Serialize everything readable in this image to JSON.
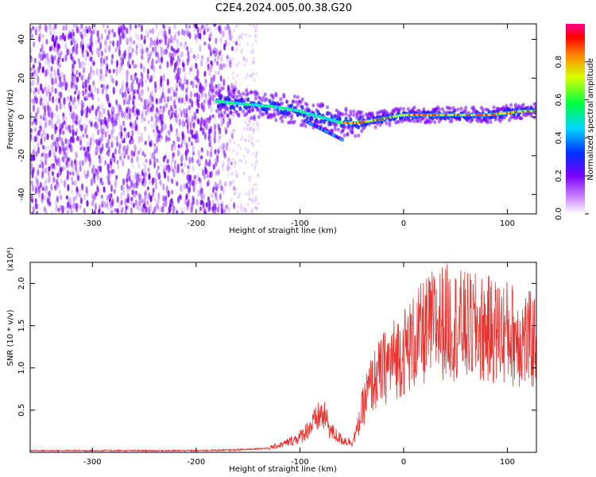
{
  "title": "C2E4.2024.005.00.38.G20",
  "chart_data": [
    {
      "type": "heatmap",
      "xlabel": "Height of straight line (km)",
      "ylabel": "Frequency (Hz)",
      "xlim": [
        -360,
        128
      ],
      "ylim": [
        -50,
        48
      ],
      "xticks": [
        -300,
        -200,
        -100,
        0,
        100
      ],
      "yticks": [
        -40,
        -20,
        0,
        20,
        40
      ],
      "colorbar": {
        "label": "Normalized spectral amplitude",
        "range": [
          0.0,
          1.0
        ],
        "ticks": [
          "0.0",
          "0.2",
          "0.4",
          "0.6",
          "0.8"
        ]
      },
      "ridge": {
        "x": [
          -180,
          -160,
          -140,
          -120,
          -100,
          -80,
          -60,
          -45,
          -30,
          -10,
          0,
          20,
          40,
          60,
          80,
          100,
          115,
          128
        ],
        "freq_hz": [
          8,
          7,
          6,
          5,
          3,
          0,
          -3,
          -3,
          -2,
          0,
          1,
          1,
          1,
          1,
          1,
          2,
          3,
          3
        ]
      }
    },
    {
      "type": "line",
      "xlabel": "Height of straight line (km)",
      "ylabel": "SNR (10 * v/v)",
      "scale_label": "(x10⁴)",
      "xlim": [
        -360,
        128
      ],
      "ylim": [
        0,
        2.25
      ],
      "xticks": [
        -300,
        -200,
        -100,
        0,
        100
      ],
      "yticks": [
        "0.5",
        "1.0",
        "1.5",
        "2.0"
      ],
      "series": [
        {
          "name": "SNR",
          "color": "#e8332f",
          "x": [
            -360,
            -300,
            -200,
            -160,
            -130,
            -115,
            -100,
            -90,
            -80,
            -75,
            -70,
            -60,
            -50,
            -45,
            -40,
            -35,
            -30,
            -20,
            -10,
            0,
            10,
            20,
            30,
            40,
            60,
            80,
            100,
            115,
            128
          ],
          "y": [
            0.02,
            0.02,
            0.02,
            0.03,
            0.05,
            0.1,
            0.18,
            0.3,
            0.45,
            0.4,
            0.25,
            0.15,
            0.12,
            0.25,
            0.5,
            0.7,
            0.82,
            0.98,
            1.1,
            1.2,
            1.3,
            1.42,
            1.52,
            1.55,
            1.48,
            1.45,
            1.42,
            1.35,
            1.3
          ]
        }
      ]
    }
  ]
}
